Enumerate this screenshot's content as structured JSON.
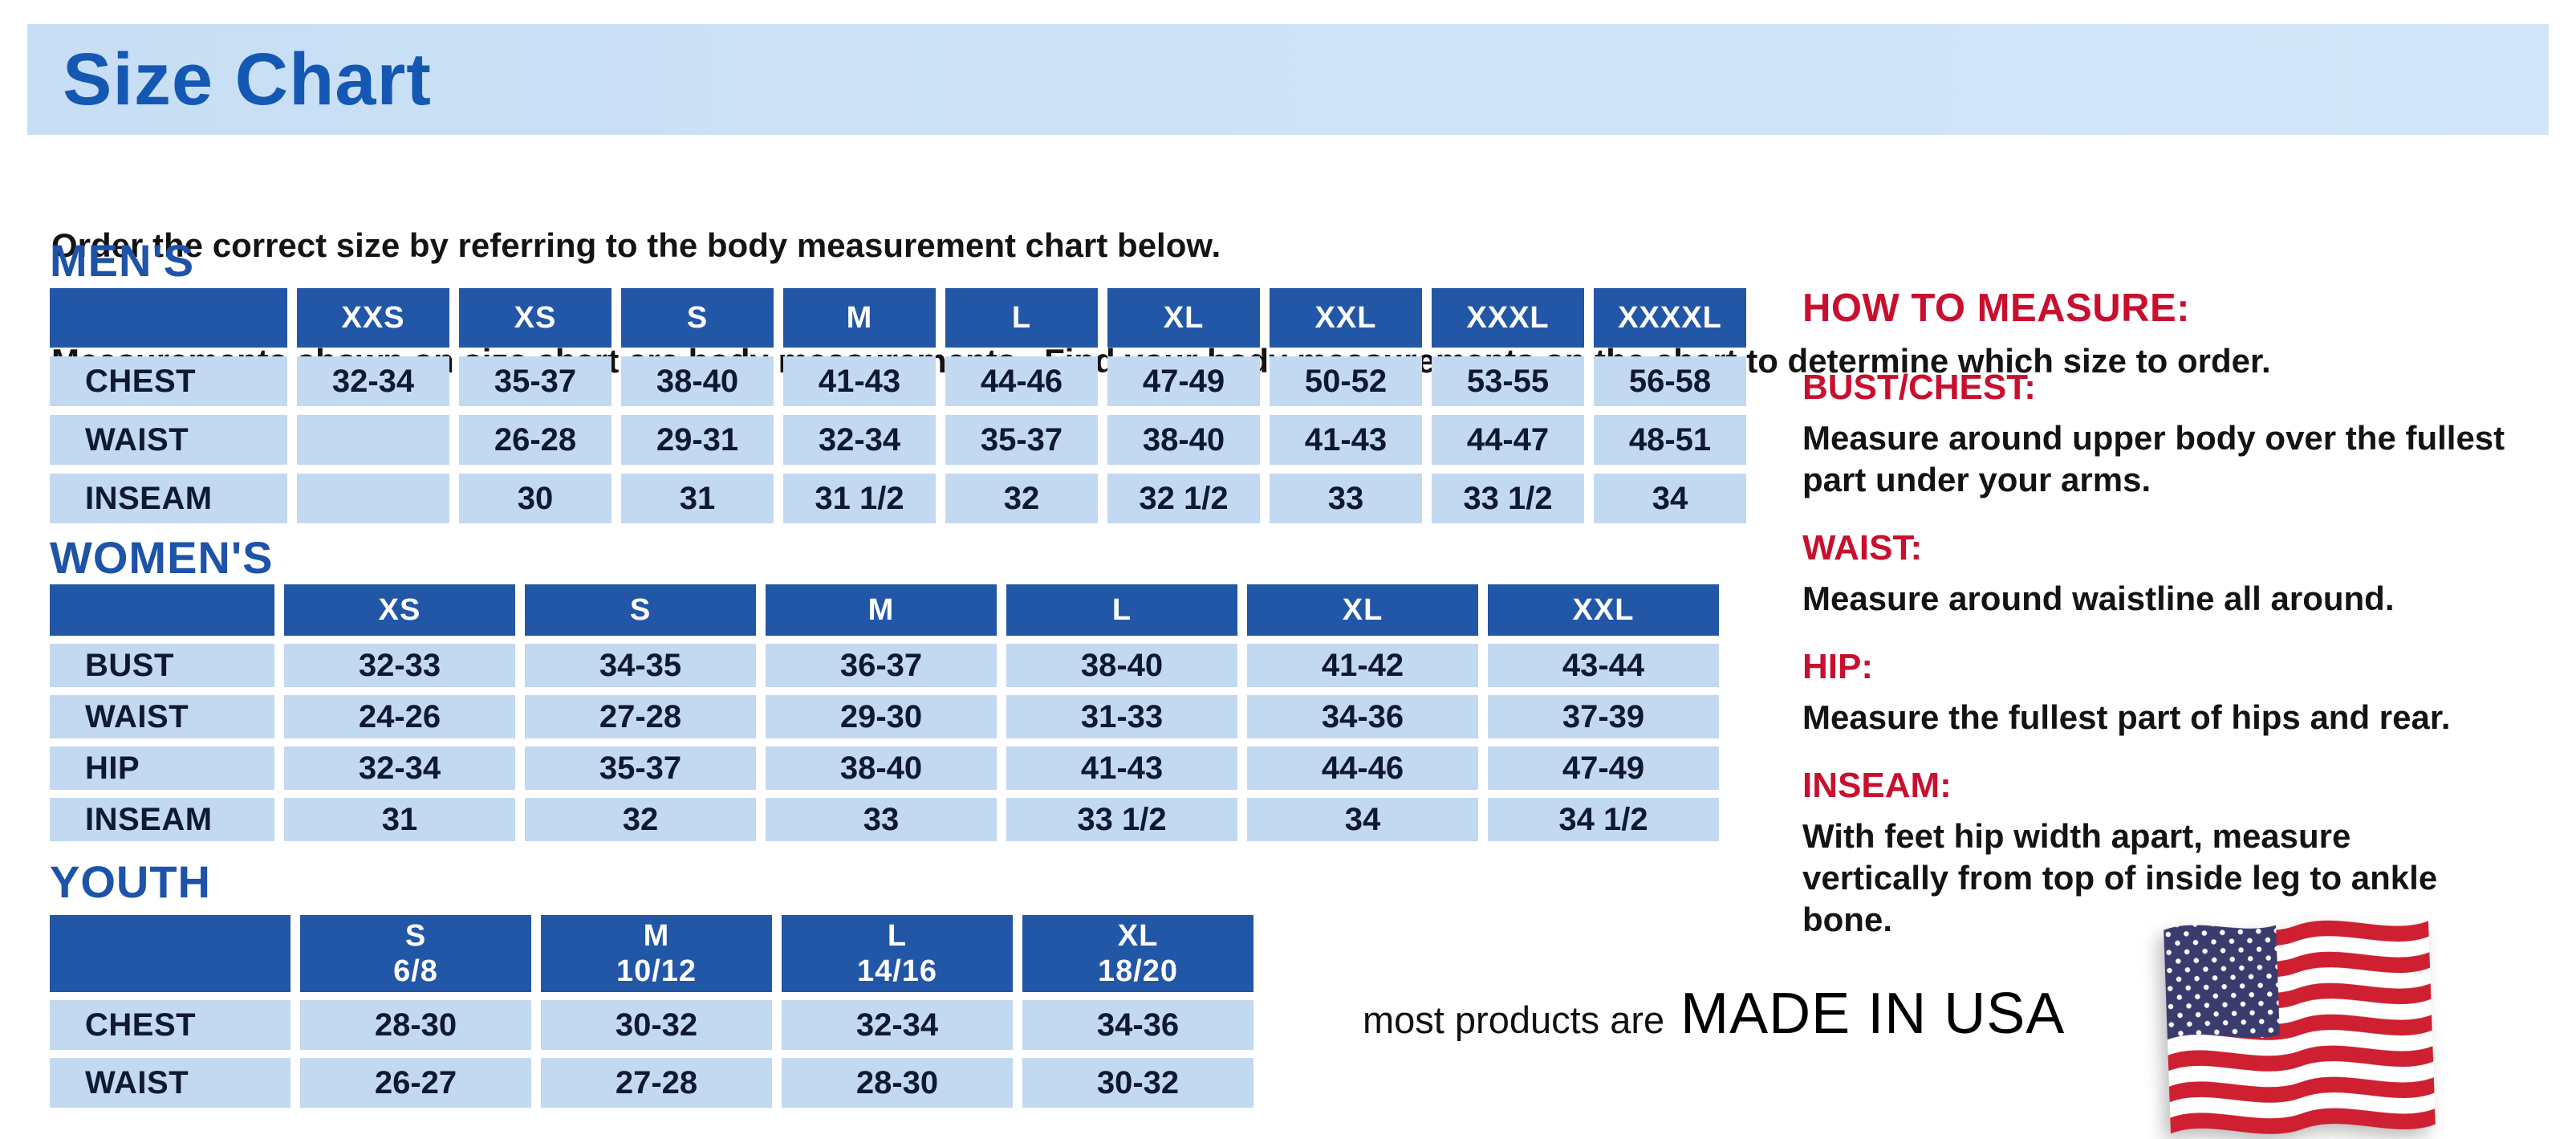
{
  "page": {
    "title": "Size Chart",
    "intro_line1": "Order the correct size by referring to the body measurement chart below.",
    "intro_line2": "Measurements shown on size chart are body measurements.  Find your body measurements on the chart to determine which size to order."
  },
  "colors": {
    "banner-blue": "#C7DEF4",
    "title-blue": "#1558B4",
    "heading-blue": "#1D53A8",
    "header-blue": "#2256A7",
    "cell-blue": "#C3D9F1",
    "cell-text": "#0F1930",
    "body-text": "#141414",
    "accent-red": "#C8102E",
    "flag-red": "#CE2030",
    "flag-navy": "#3C3B6E"
  },
  "tables": {
    "mens": {
      "heading": "MEN'S",
      "columns": [
        "XXS",
        "XS",
        "S",
        "M",
        "L",
        "XL",
        "XXL",
        "XXXL",
        "XXXXL"
      ],
      "rows": [
        {
          "label": "CHEST",
          "values": [
            "32-34",
            "35-37",
            "38-40",
            "41-43",
            "44-46",
            "47-49",
            "50-52",
            "53-55",
            "56-58"
          ]
        },
        {
          "label": "WAIST",
          "values": [
            "",
            "26-28",
            "29-31",
            "32-34",
            "35-37",
            "38-40",
            "41-43",
            "44-47",
            "48-51"
          ]
        },
        {
          "label": "INSEAM",
          "values": [
            "",
            "30",
            "31",
            "31 1/2",
            "32",
            "32 1/2",
            "33",
            "33 1/2",
            "34"
          ]
        }
      ]
    },
    "womens": {
      "heading": "WOMEN'S",
      "columns": [
        "XS",
        "S",
        "M",
        "L",
        "XL",
        "XXL"
      ],
      "rows": [
        {
          "label": "BUST",
          "values": [
            "32-33",
            "34-35",
            "36-37",
            "38-40",
            "41-42",
            "43-44"
          ]
        },
        {
          "label": "WAIST",
          "values": [
            "24-26",
            "27-28",
            "29-30",
            "31-33",
            "34-36",
            "37-39"
          ]
        },
        {
          "label": "HIP",
          "values": [
            "32-34",
            "35-37",
            "38-40",
            "41-43",
            "44-46",
            "47-49"
          ]
        },
        {
          "label": "INSEAM",
          "values": [
            "31",
            "32",
            "33",
            "33 1/2",
            "34",
            "34 1/2"
          ]
        }
      ]
    },
    "youth": {
      "heading": "YOUTH",
      "columns": [
        [
          "S",
          "6/8"
        ],
        [
          "M",
          "10/12"
        ],
        [
          "L",
          "14/16"
        ],
        [
          "XL",
          "18/20"
        ]
      ],
      "rows": [
        {
          "label": "CHEST",
          "values": [
            "28-30",
            "30-32",
            "32-34",
            "34-36"
          ]
        },
        {
          "label": "WAIST",
          "values": [
            "26-27",
            "27-28",
            "28-30",
            "30-32"
          ]
        }
      ]
    }
  },
  "how_to_measure": {
    "title": "HOW TO MEASURE:",
    "items": [
      {
        "label": "BUST/CHEST:",
        "text": "Measure around upper body over the fullest part under your arms."
      },
      {
        "label": "WAIST:",
        "text": "Measure around waistline all around."
      },
      {
        "label": "HIP:",
        "text": "Measure the fullest part of hips and rear."
      },
      {
        "label": "INSEAM:",
        "text": "With feet hip width apart, measure vertically from top of inside leg to ankle bone."
      }
    ]
  },
  "footer": {
    "prefix": "most products are",
    "emphasis": "MADE IN USA",
    "flag_icon": "us-flag-icon"
  }
}
